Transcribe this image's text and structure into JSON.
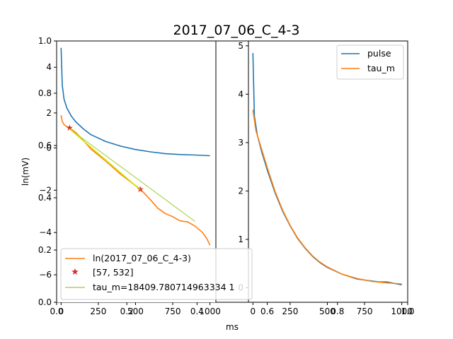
{
  "figure": {
    "title": "2017_07_06_C_4-3",
    "xlabel": "ms",
    "ylabel": "ln(mV)"
  },
  "background_axes": {
    "xticks": [
      "0.0",
      "0.2",
      "0.4",
      "0.6",
      "0.8",
      "1.0"
    ],
    "yticks": [
      "0.0",
      "0.2",
      "0.4",
      "0.6",
      "0.8",
      "1.0"
    ],
    "xlim": [
      0,
      1
    ],
    "ylim": [
      0,
      1
    ]
  },
  "chart_data": [
    {
      "type": "line",
      "panel": "left-top",
      "xlim": [
        -30,
        1040
      ],
      "ylim": [
        -0.35,
        5.15
      ],
      "xticks": [
        "0",
        "250",
        "500",
        "750",
        "1000"
      ],
      "yticks": [
        "2",
        "4"
      ],
      "series": [
        {
          "color": "#1f77b4",
          "points": [
            [
              0,
              4.85
            ],
            [
              8,
              3.2
            ],
            [
              20,
              2.6
            ],
            [
              40,
              2.2
            ],
            [
              70,
              1.85
            ],
            [
              100,
              1.6
            ],
            [
              150,
              1.3
            ],
            [
              200,
              1.05
            ],
            [
              300,
              0.75
            ],
            [
              400,
              0.55
            ],
            [
              500,
              0.4
            ],
            [
              600,
              0.3
            ],
            [
              700,
              0.22
            ],
            [
              800,
              0.18
            ],
            [
              900,
              0.16
            ],
            [
              1000,
              0.13
            ]
          ]
        }
      ]
    },
    {
      "type": "line",
      "panel": "left-bottom",
      "xlim": [
        -30,
        1040
      ],
      "ylim": [
        -7.3,
        0.65
      ],
      "xticks": [
        "0",
        "250",
        "500",
        "750",
        "1000"
      ],
      "yticks": [
        "0",
        "−2",
        "−4",
        "−6"
      ],
      "series": [
        {
          "name": "ln(2017_07_06_C_4-3)",
          "color": "#ff7f0e",
          "points": [
            [
              0,
              1.55
            ],
            [
              8,
              1.25
            ],
            [
              20,
              1.1
            ],
            [
              40,
              1.0
            ],
            [
              57,
              0.95
            ],
            [
              100,
              0.72
            ],
            [
              150,
              0.35
            ],
            [
              200,
              -0.05
            ],
            [
              300,
              -0.62
            ],
            [
              400,
              -1.24
            ],
            [
              500,
              -1.78
            ],
            [
              532,
              -1.95
            ],
            [
              600,
              -2.45
            ],
            [
              650,
              -2.85
            ],
            [
              700,
              -3.1
            ],
            [
              750,
              -3.25
            ],
            [
              800,
              -3.45
            ],
            [
              850,
              -3.5
            ],
            [
              900,
              -3.7
            ],
            [
              950,
              -4.0
            ],
            [
              980,
              -4.3
            ],
            [
              1000,
              -4.6
            ]
          ]
        },
        {
          "name": "[57, 532]",
          "color": "#d62728",
          "points": [
            [
              57,
              0.95
            ],
            [
              532,
              -1.95
            ]
          ]
        },
        {
          "name": "tau_m=18409.780714963334 1",
          "color": "#9acd32",
          "points": [
            [
              57,
              0.9
            ],
            [
              900,
              -3.48
            ]
          ]
        },
        {
          "color": "#d8e000",
          "points": [
            [
              57,
              0.9
            ],
            [
              532,
              -1.98
            ]
          ]
        }
      ]
    },
    {
      "type": "line",
      "panel": "right",
      "xlim": [
        -30,
        1040
      ],
      "ylim": [
        -0.3,
        5.1
      ],
      "xticks": [
        "0",
        "250",
        "500",
        "750",
        "1000"
      ],
      "yticks": [
        "0",
        "1",
        "2",
        "3",
        "4",
        "5"
      ],
      "series": [
        {
          "name": "pulse",
          "color": "#1f77b4",
          "points": [
            [
              0,
              4.85
            ],
            [
              10,
              3.55
            ],
            [
              30,
              3.15
            ],
            [
              60,
              2.8
            ],
            [
              100,
              2.4
            ],
            [
              150,
              1.95
            ],
            [
              200,
              1.58
            ],
            [
              250,
              1.28
            ],
            [
              300,
              1.02
            ],
            [
              350,
              0.82
            ],
            [
              400,
              0.65
            ],
            [
              450,
              0.52
            ],
            [
              500,
              0.42
            ],
            [
              600,
              0.28
            ],
            [
              700,
              0.18
            ],
            [
              800,
              0.14
            ],
            [
              850,
              0.12
            ],
            [
              900,
              0.12
            ],
            [
              1000,
              0.06
            ]
          ]
        },
        {
          "name": "tau_m",
          "color": "#ff7f0e",
          "points": [
            [
              0,
              3.68
            ],
            [
              20,
              3.25
            ],
            [
              50,
              2.95
            ],
            [
              100,
              2.45
            ],
            [
              150,
              1.98
            ],
            [
              200,
              1.6
            ],
            [
              250,
              1.29
            ],
            [
              300,
              1.03
            ],
            [
              350,
              0.83
            ],
            [
              400,
              0.66
            ],
            [
              450,
              0.53
            ],
            [
              500,
              0.43
            ],
            [
              600,
              0.28
            ],
            [
              700,
              0.19
            ],
            [
              800,
              0.13
            ],
            [
              900,
              0.1
            ],
            [
              1000,
              0.08
            ]
          ]
        }
      ]
    }
  ]
}
